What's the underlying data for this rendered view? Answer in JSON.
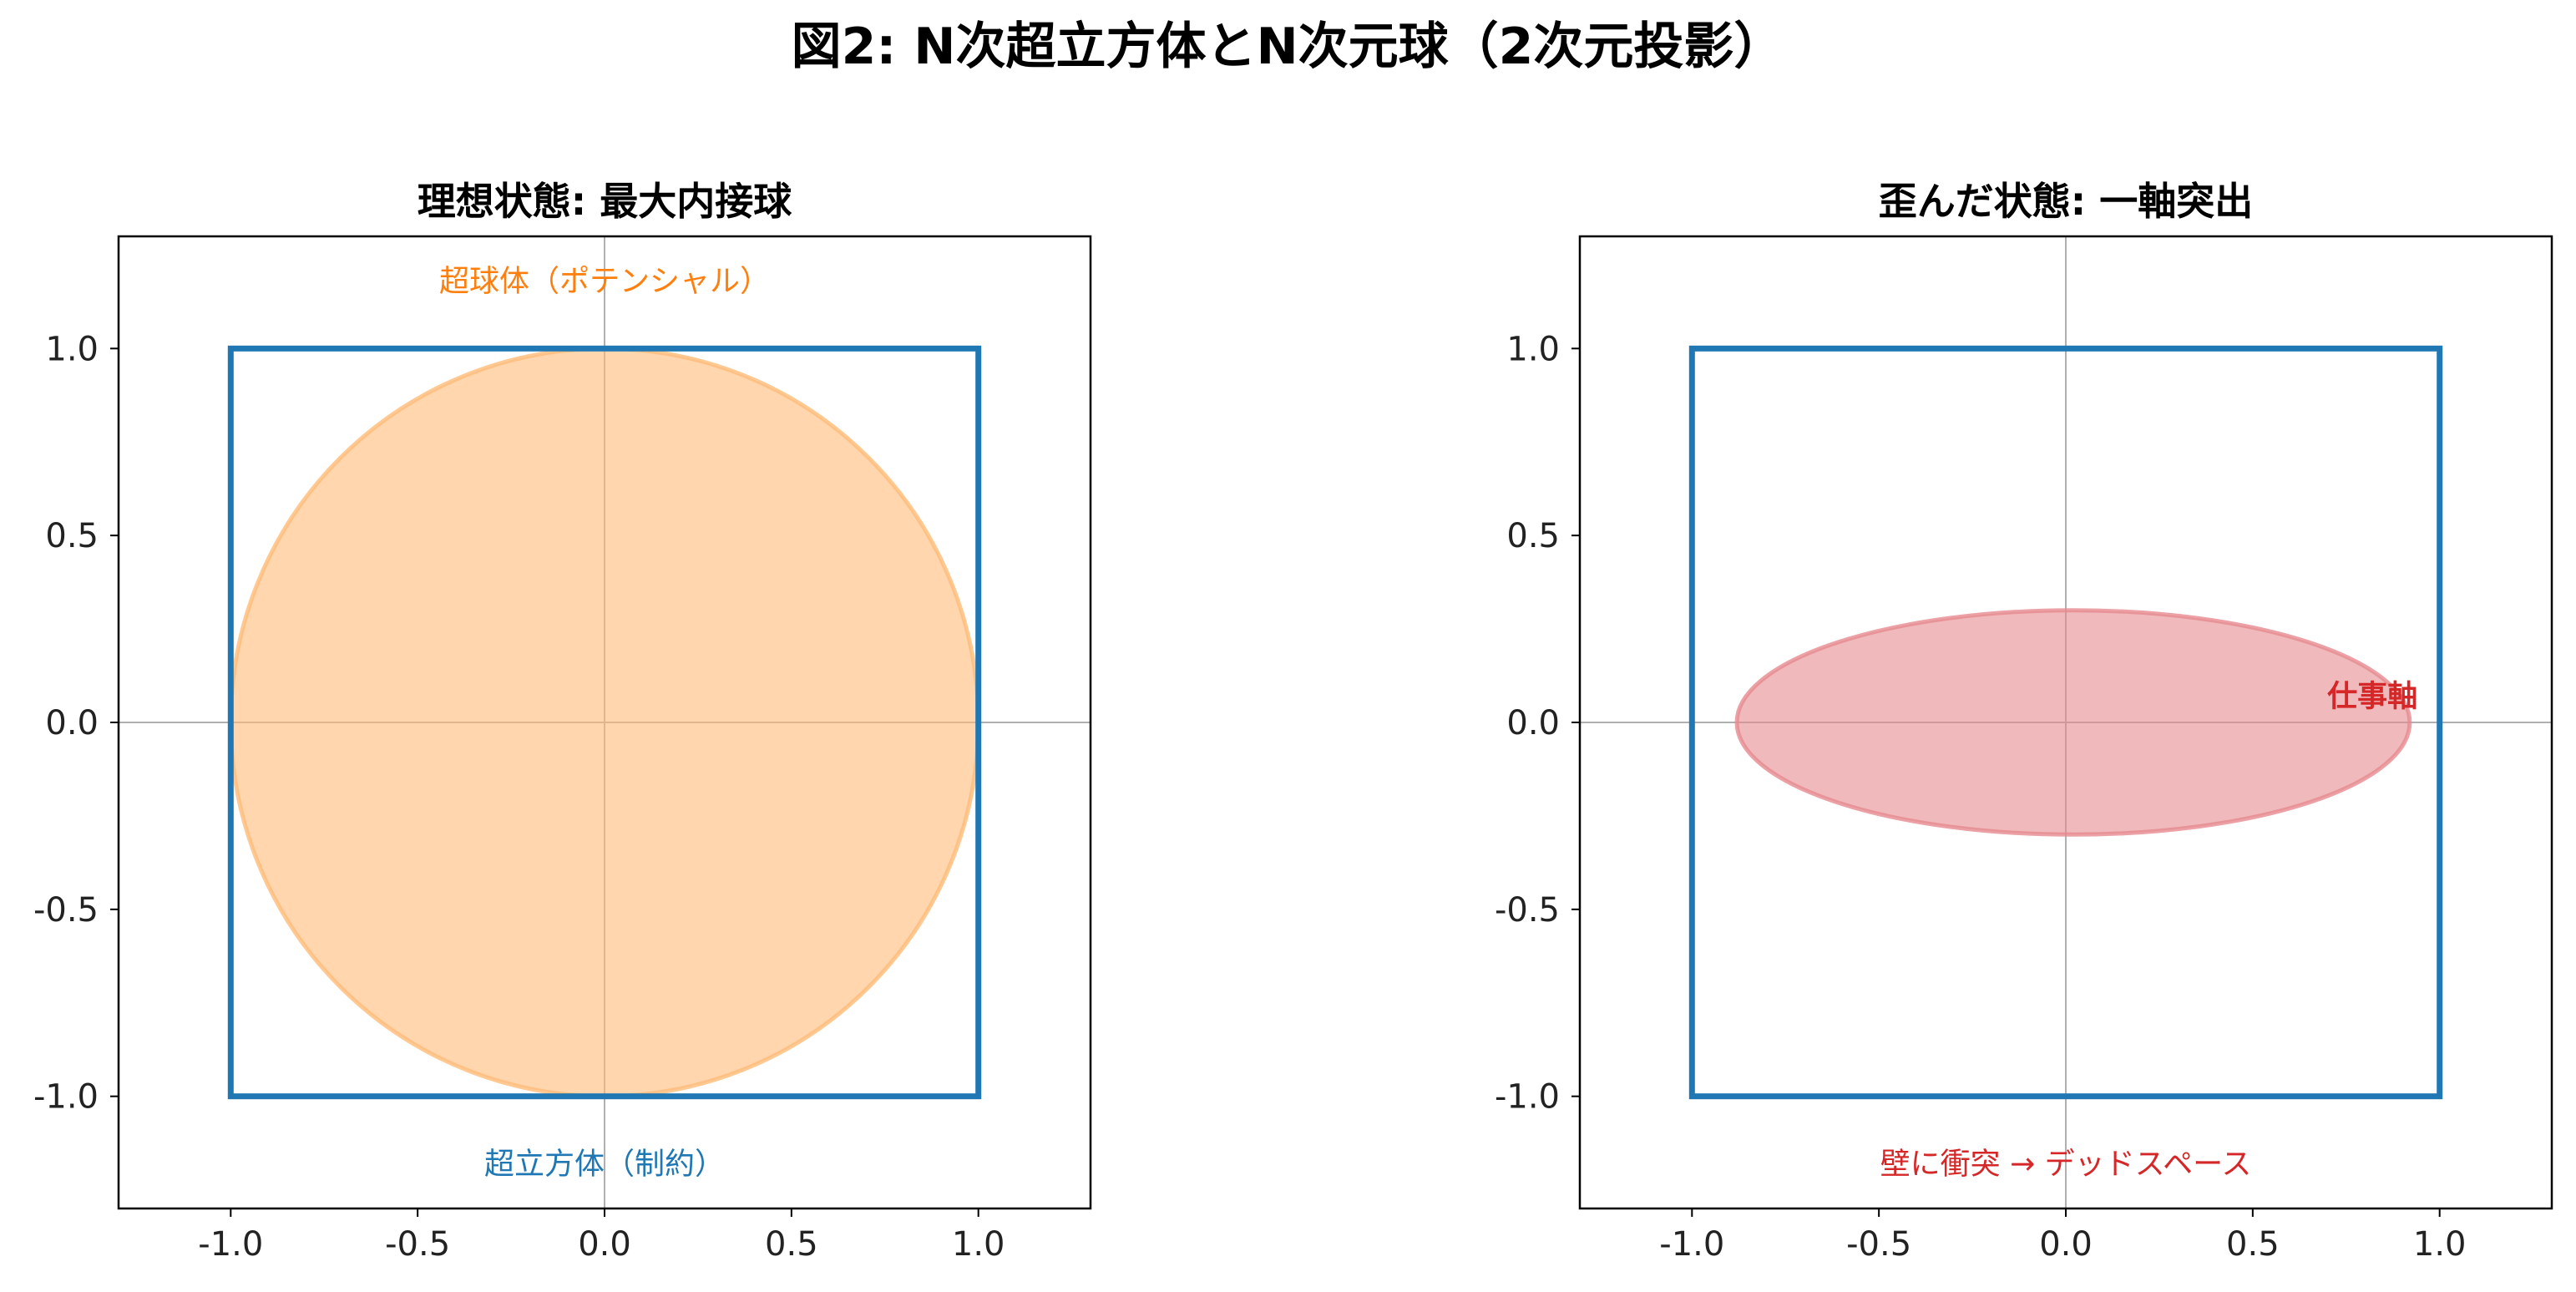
{
  "figure": {
    "suptitle": "図2: N次超立方体とN次元球（2次元投影）"
  },
  "chart_data": [
    {
      "type": "scatter",
      "title": "理想状態: 最大内接球",
      "xlim": [
        -1.3,
        1.3
      ],
      "ylim": [
        -1.3,
        1.3
      ],
      "xticks": [
        -1.0,
        -0.5,
        0.0,
        0.5,
        1.0
      ],
      "yticks": [
        -1.0,
        -0.5,
        0.0,
        0.5,
        1.0
      ],
      "xtick_labels": [
        "-1.0",
        "-0.5",
        "0.0",
        "0.5",
        "1.0"
      ],
      "ytick_labels": [
        "-1.0",
        "-0.5",
        "0.0",
        "0.5",
        "1.0"
      ],
      "grid": "axes lines at x=0 and y=0",
      "square": {
        "x": [
          -1,
          1
        ],
        "y": [
          -1,
          1
        ],
        "color": "#1f77b4"
      },
      "ellipse": {
        "cx": 0,
        "cy": 0,
        "rx": 1.0,
        "ry": 1.0,
        "color": "#ffbb78",
        "fill_opacity": 0.6
      },
      "annotations": [
        {
          "text": "超球体（ポテンシャル）",
          "x": 0,
          "y": 1.18,
          "color": "#ff7f0e",
          "bold": false
        },
        {
          "text": "超立方体（制約）",
          "x": 0,
          "y": -1.18,
          "color": "#1f77b4",
          "bold": false
        }
      ]
    },
    {
      "type": "scatter",
      "title": "歪んだ状態: 一軸突出",
      "xlim": [
        -1.3,
        1.3
      ],
      "ylim": [
        -1.3,
        1.3
      ],
      "xticks": [
        -1.0,
        -0.5,
        0.0,
        0.5,
        1.0
      ],
      "yticks": [
        -1.0,
        -0.5,
        0.0,
        0.5,
        1.0
      ],
      "xtick_labels": [
        "-1.0",
        "-0.5",
        "0.0",
        "0.5",
        "1.0"
      ],
      "ytick_labels": [
        "-1.0",
        "-0.5",
        "0.0",
        "0.5",
        "1.0"
      ],
      "grid": "axes lines at x=0 and y=0",
      "square": {
        "x": [
          -1,
          1
        ],
        "y": [
          -1,
          1
        ],
        "color": "#1f77b4"
      },
      "ellipse": {
        "cx": 0.02,
        "cy": 0,
        "rx": 0.9,
        "ry": 0.3,
        "color": "#e68a8f",
        "fill_opacity": 0.6
      },
      "annotations": [
        {
          "text": "仕事軸",
          "x": 0.82,
          "y": 0.07,
          "color": "#d62728",
          "bold": true
        },
        {
          "text": "壁に衝突 → デッドスペース",
          "x": 0,
          "y": -1.18,
          "color": "#d62728",
          "bold": false
        }
      ]
    }
  ]
}
